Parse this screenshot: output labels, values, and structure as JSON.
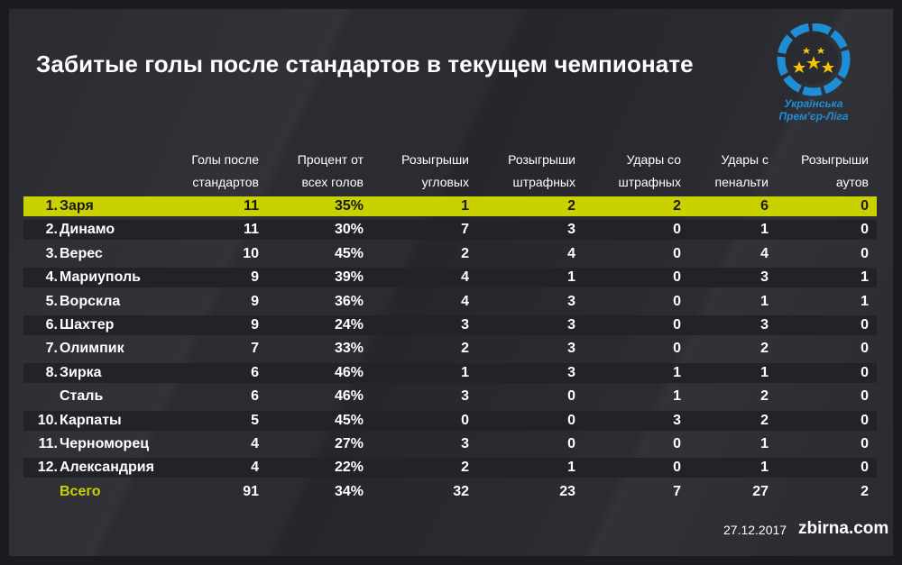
{
  "title": "Забитые голы после стандартов в текущем чемпионате",
  "logo": {
    "line1": "Українська",
    "line2": "Прем'єр-Ліга"
  },
  "footer": {
    "date": "27.12.2017",
    "brand": "zbirna.com"
  },
  "colors": {
    "highlight": "#c9d100",
    "background": "#2a2b31",
    "shaded_row": "#222328",
    "logo_blue": "#1e8fd6",
    "logo_star": "#f2c500"
  },
  "chart_data": {
    "type": "table",
    "columns": [
      {
        "line1": "Голы после",
        "line2": "стандартов"
      },
      {
        "line1": "Процент от",
        "line2": "всех голов"
      },
      {
        "line1": "Розыгрыши",
        "line2": "угловых"
      },
      {
        "line1": "Розыгрыши",
        "line2": "штрафных"
      },
      {
        "line1": "Удары со",
        "line2": "штрафных"
      },
      {
        "line1": "Удары с",
        "line2": "пенальти"
      },
      {
        "line1": "Розыгрыши",
        "line2": "аутов"
      }
    ],
    "rows": [
      {
        "rank": "1.",
        "team": "Заря",
        "values": [
          "11",
          "35%",
          "1",
          "2",
          "2",
          "6",
          "0"
        ],
        "highlight": true
      },
      {
        "rank": "2.",
        "team": "Динамо",
        "values": [
          "11",
          "30%",
          "7",
          "3",
          "0",
          "1",
          "0"
        ]
      },
      {
        "rank": "3.",
        "team": "Верес",
        "values": [
          "10",
          "45%",
          "2",
          "4",
          "0",
          "4",
          "0"
        ]
      },
      {
        "rank": "4.",
        "team": "Мариуполь",
        "values": [
          "9",
          "39%",
          "4",
          "1",
          "0",
          "3",
          "1"
        ]
      },
      {
        "rank": "5.",
        "team": "Ворскла",
        "values": [
          "9",
          "36%",
          "4",
          "3",
          "0",
          "1",
          "1"
        ]
      },
      {
        "rank": "6.",
        "team": "Шахтер",
        "values": [
          "9",
          "24%",
          "3",
          "3",
          "0",
          "3",
          "0"
        ]
      },
      {
        "rank": "7.",
        "team": "Олимпик",
        "values": [
          "7",
          "33%",
          "2",
          "3",
          "0",
          "2",
          "0"
        ]
      },
      {
        "rank": "8.",
        "team": "Зирка",
        "values": [
          "6",
          "46%",
          "1",
          "3",
          "1",
          "1",
          "0"
        ]
      },
      {
        "rank": "",
        "team": "Сталь",
        "values": [
          "6",
          "46%",
          "3",
          "0",
          "1",
          "2",
          "0"
        ]
      },
      {
        "rank": "10.",
        "team": "Карпаты",
        "values": [
          "5",
          "45%",
          "0",
          "0",
          "3",
          "2",
          "0"
        ]
      },
      {
        "rank": "11.",
        "team": "Черноморец",
        "values": [
          "4",
          "27%",
          "3",
          "0",
          "0",
          "1",
          "0"
        ]
      },
      {
        "rank": "12.",
        "team": "Александрия",
        "values": [
          "4",
          "22%",
          "2",
          "1",
          "0",
          "1",
          "0"
        ]
      }
    ],
    "total": {
      "label": "Всего",
      "values": [
        "91",
        "34%",
        "32",
        "23",
        "7",
        "27",
        "2"
      ]
    }
  }
}
